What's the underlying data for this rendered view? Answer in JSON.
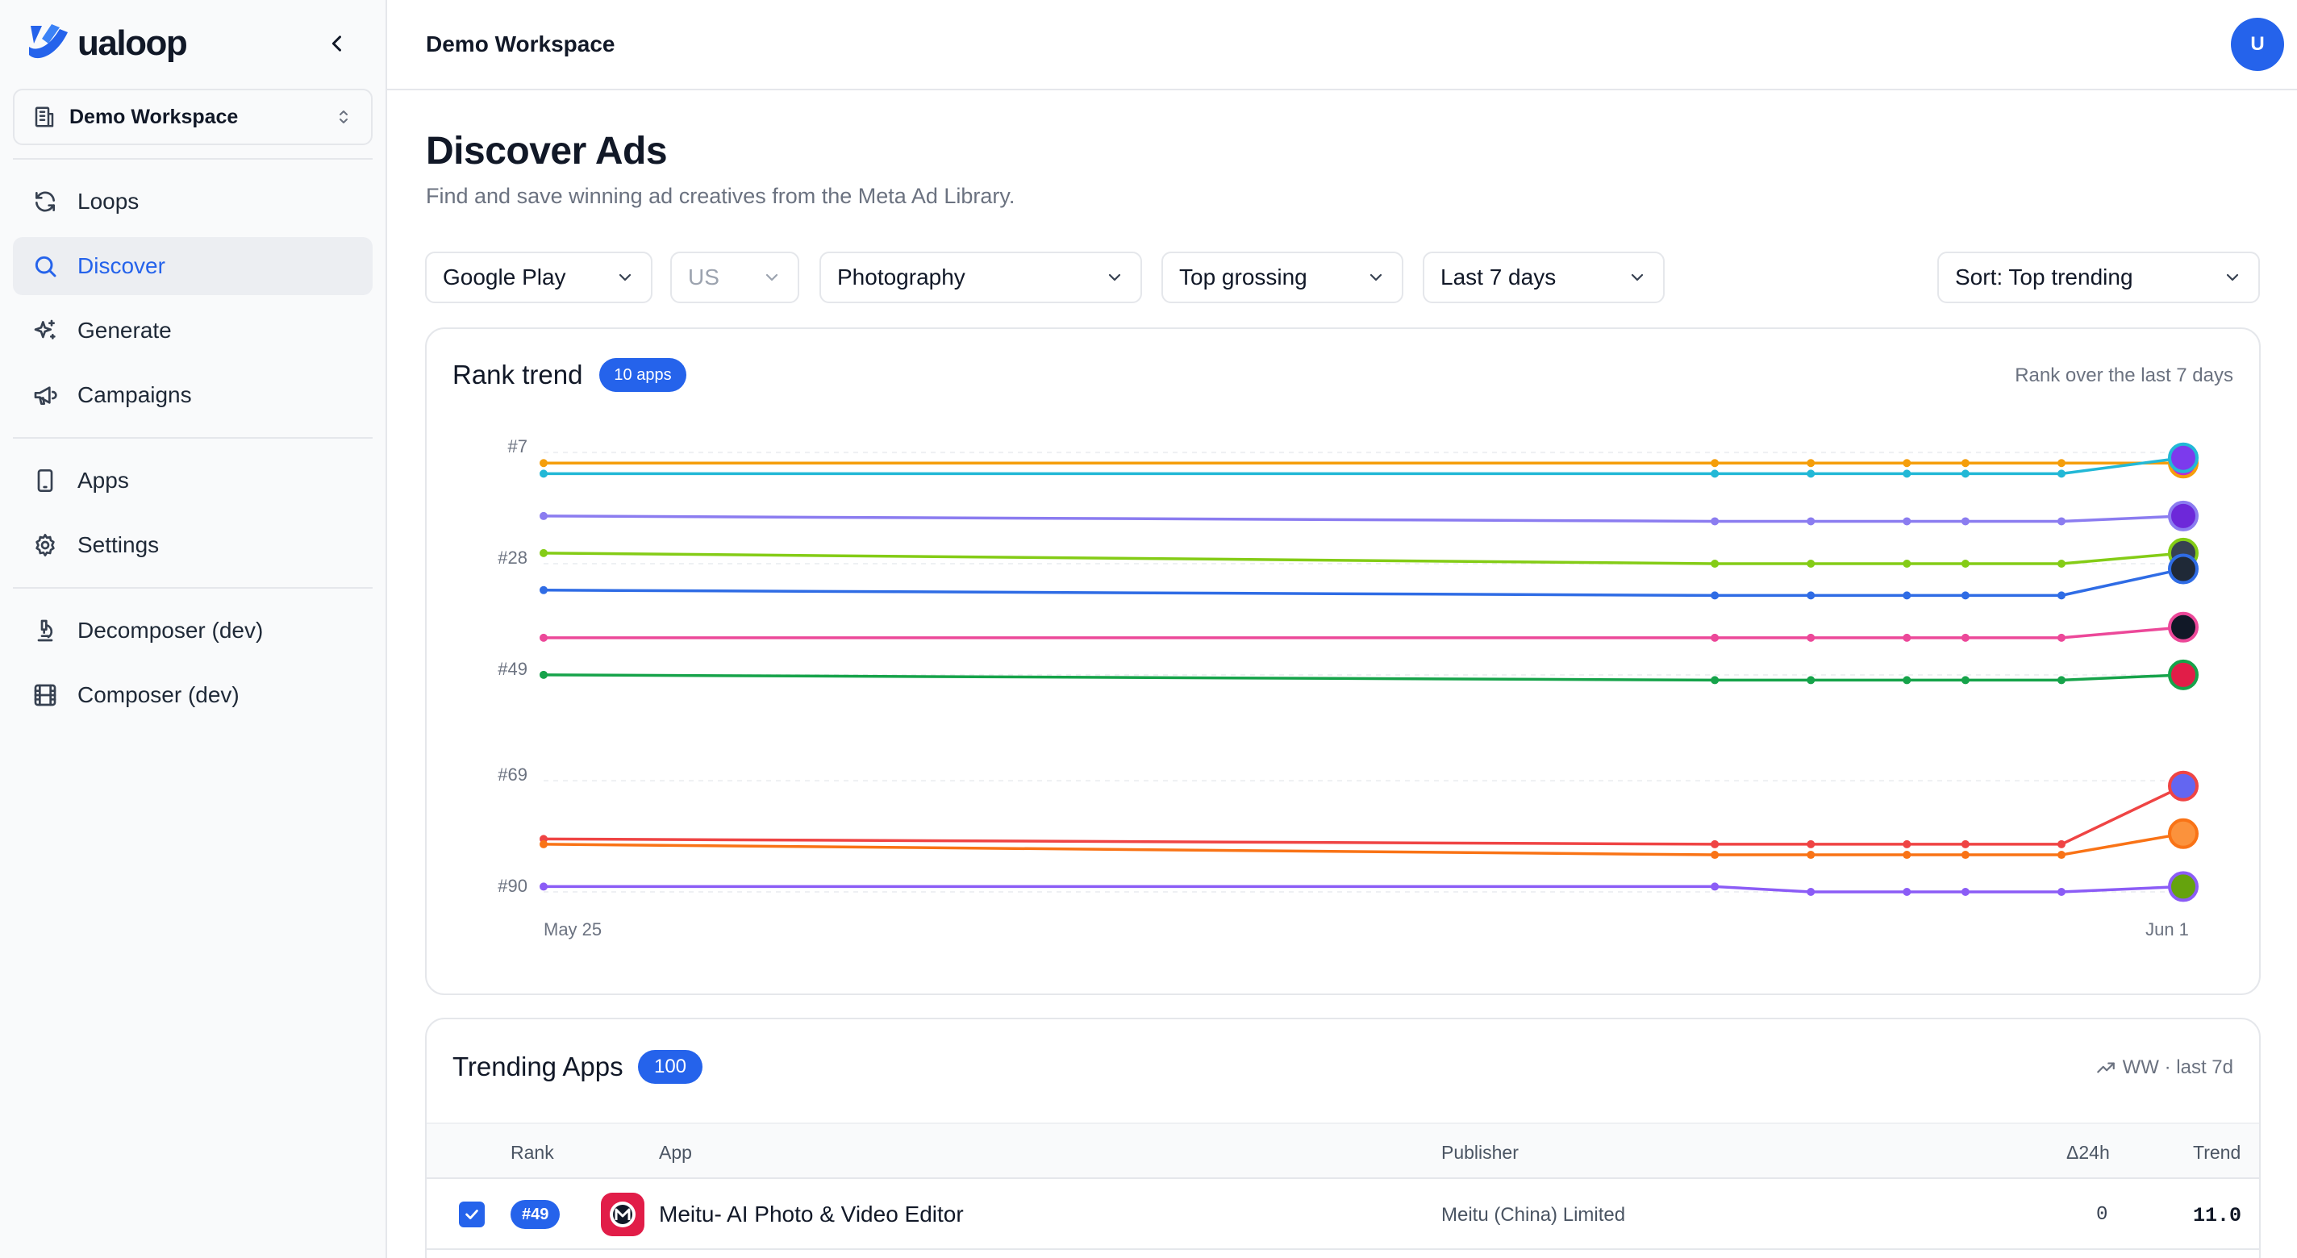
{
  "brand": {
    "name": "ualoop"
  },
  "workspace_select": {
    "label": "Demo Workspace"
  },
  "sidebar": {
    "group1": [
      {
        "label": "Loops",
        "icon": "refresh-icon",
        "active": false
      },
      {
        "label": "Discover",
        "icon": "search-icon",
        "active": true
      },
      {
        "label": "Generate",
        "icon": "sparkles-icon",
        "active": false
      },
      {
        "label": "Campaigns",
        "icon": "megaphone-icon",
        "active": false
      }
    ],
    "group2": [
      {
        "label": "Apps",
        "icon": "smartphone-icon",
        "active": false
      },
      {
        "label": "Settings",
        "icon": "gear-icon",
        "active": false
      }
    ],
    "group3": [
      {
        "label": "Decomposer (dev)",
        "icon": "microscope-icon",
        "active": false
      },
      {
        "label": "Composer (dev)",
        "icon": "film-icon",
        "active": false
      }
    ]
  },
  "topbar": {
    "title": "Demo Workspace",
    "avatar_initial": "U"
  },
  "page": {
    "title": "Discover Ads",
    "subtitle": "Find and save winning ad creatives from the Meta Ad Library."
  },
  "filters": {
    "store": "Google Play",
    "country": "US",
    "category": "Photography",
    "chart": "Top grossing",
    "period": "Last 7 days",
    "sort": "Sort: Top trending"
  },
  "rank_trend": {
    "title": "Rank trend",
    "badge": "10 apps",
    "note": "Rank over the last 7 days"
  },
  "chart_data": {
    "type": "line",
    "title": "Rank trend",
    "y_axis": {
      "inverted": true,
      "range": [
        5,
        90
      ],
      "ticks": [
        7,
        28,
        49,
        69,
        90
      ],
      "tick_labels": [
        "#7",
        "#28",
        "#49",
        "#69",
        "#90"
      ]
    },
    "x_axis": {
      "start_label": "May 25",
      "end_label": "Jun 1",
      "range": [
        0,
        7
      ]
    },
    "x": [
      0,
      5,
      5.41,
      5.82,
      6.07,
      6.48,
      7
    ],
    "grid": true,
    "series": [
      {
        "color": "#f59e0b",
        "values": [
          9,
          9,
          9,
          9,
          9,
          9,
          9
        ],
        "final_icon_color": "#c026d3"
      },
      {
        "color": "#22b8d6",
        "values": [
          11,
          11,
          11,
          11,
          11,
          11,
          8
        ],
        "final_icon_color": "#7c3aed"
      },
      {
        "color": "#8b7cf0",
        "values": [
          19,
          20,
          20,
          20,
          20,
          20,
          19
        ],
        "final_icon_color": "#6d28d9"
      },
      {
        "color": "#84cc16",
        "values": [
          26,
          28,
          28,
          28,
          28,
          28,
          26
        ],
        "final_icon_color": "#374151"
      },
      {
        "color": "#2f6ce5",
        "values": [
          33,
          34,
          34,
          34,
          34,
          34,
          29
        ],
        "final_icon_color": "#1f2937"
      },
      {
        "color": "#ec4899",
        "values": [
          42,
          42,
          42,
          42,
          42,
          42,
          40
        ],
        "final_icon_color": "#111827"
      },
      {
        "color": "#16a34a",
        "values": [
          49,
          50,
          50,
          50,
          50,
          50,
          49
        ],
        "final_icon_color": "#e11d48"
      },
      {
        "color": "#ef4444",
        "values": [
          80,
          81,
          81,
          81,
          81,
          81,
          70
        ],
        "final_icon_color": "#6366f1"
      },
      {
        "color": "#f97316",
        "values": [
          81,
          83,
          83,
          83,
          83,
          83,
          79
        ],
        "final_icon_color": "#fb923c"
      },
      {
        "color": "#8b5cf6",
        "values": [
          89,
          89,
          90,
          90,
          90,
          90,
          89
        ],
        "final_icon_color": "#65a30d"
      }
    ]
  },
  "trending": {
    "title": "Trending Apps",
    "count": "100",
    "note": "WW · last 7d",
    "columns": {
      "rank": "Rank",
      "app": "App",
      "publisher": "Publisher",
      "delta": "Δ24h",
      "trend": "Trend"
    },
    "rows": [
      {
        "checked": true,
        "rank": "#49",
        "app": "Meitu- AI Photo & Video Editor",
        "publisher": "Meitu (China) Limited",
        "delta": "0",
        "trend": "11.0"
      }
    ]
  }
}
